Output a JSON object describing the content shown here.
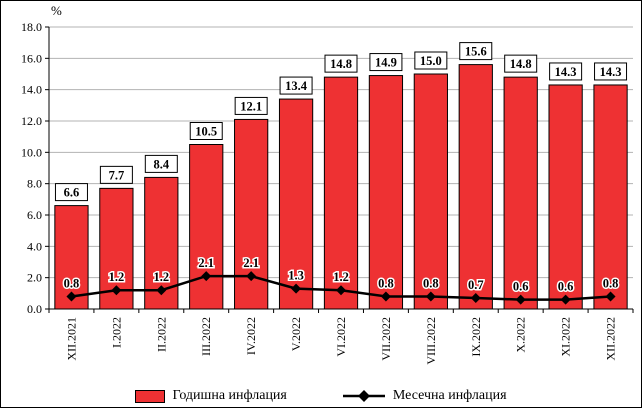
{
  "chart_data": {
    "type": "bar",
    "title": "",
    "ylabel": "%",
    "xlabel": "",
    "ylim": [
      0,
      18
    ],
    "ytick_step": 2,
    "grid": true,
    "legend_position": "bottom",
    "categories": [
      "XII.2021",
      "I.2022",
      "II.2022",
      "III.2022",
      "IV.2022",
      "V.2022",
      "VI.2022",
      "VII.2022",
      "VIII.2022",
      "IX.2022",
      "X.2022",
      "XI.2022",
      "XII.2022"
    ],
    "series": [
      {
        "name": "Годишна инфлация",
        "type": "bar",
        "color": "#ee3133",
        "values": [
          6.6,
          7.7,
          8.4,
          10.5,
          12.1,
          13.4,
          14.8,
          14.9,
          15.0,
          15.6,
          14.8,
          14.3,
          14.3
        ]
      },
      {
        "name": "Месечна инфлация",
        "type": "line",
        "color": "#000000",
        "values": [
          0.8,
          1.2,
          1.2,
          2.1,
          2.1,
          1.3,
          1.2,
          0.8,
          0.8,
          0.7,
          0.6,
          0.6,
          0.8
        ]
      }
    ]
  }
}
